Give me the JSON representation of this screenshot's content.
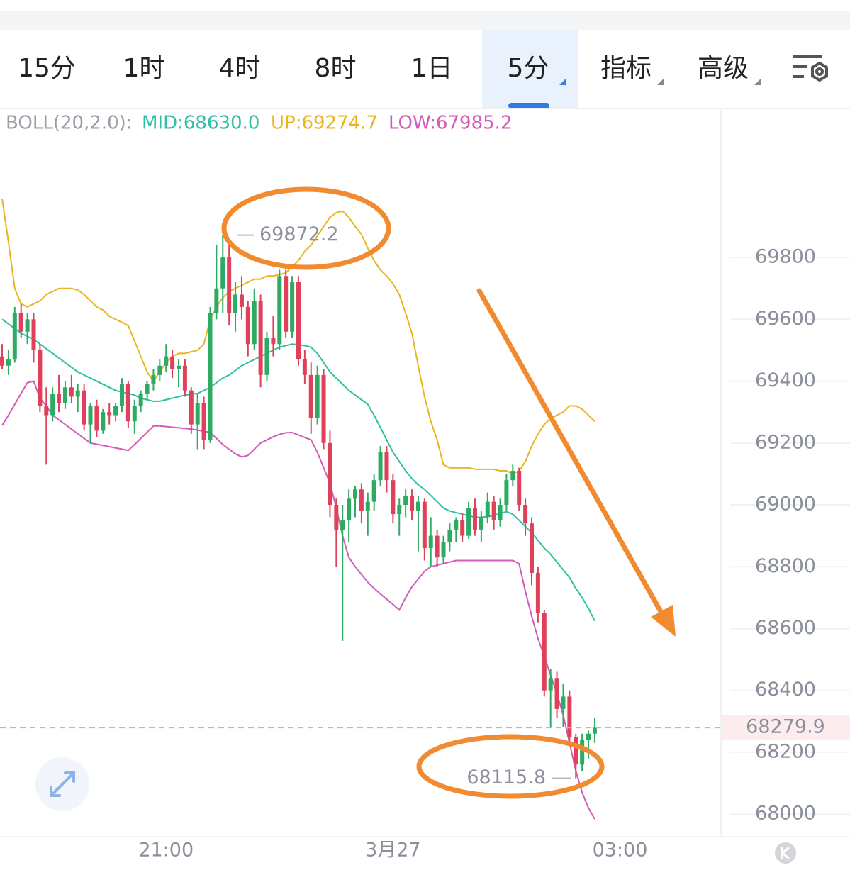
{
  "tabs": [
    "15分",
    "1时",
    "4时",
    "8时",
    "1日",
    "5分",
    "指标",
    "高级"
  ],
  "selected_tab": 5,
  "chart_data": {
    "type": "candlestick",
    "indicator_label": "BOLL(20,2.0):",
    "indicator_label_color": "#9a9ea6",
    "up_color": "#2eab63",
    "down_color": "#e0415a",
    "ylim": [
      67927,
      70174
    ],
    "yticks": [
      68000,
      68200,
      68400,
      68600,
      68800,
      69000,
      69200,
      69400,
      69600,
      69800
    ],
    "xlim": [
      -0.34,
      113.8
    ],
    "xticks": [
      {
        "value": 26,
        "label": "21:00"
      },
      {
        "value": 62,
        "label": "3月27"
      },
      {
        "value": 98,
        "label": "03:00"
      }
    ],
    "grid": true,
    "high_marker": 69872.2,
    "low_marker": 68115.8,
    "last_price": 68279.9,
    "open": [
      69480,
      69450,
      69470,
      69620,
      69560,
      69600,
      69500,
      69320,
      69290,
      69360,
      69330,
      69380,
      69350,
      69370,
      69260,
      69320,
      69240,
      69300,
      69290,
      69320,
      69390,
      69270,
      69320,
      69360,
      69390,
      69420,
      69450,
      69480,
      69440,
      69450,
      69370,
      69260,
      69330,
      69210,
      69620,
      69700,
      69800,
      69620,
      69680,
      69640,
      69520,
      69660,
      69420,
      69540,
      69520,
      69740,
      69560,
      69720,
      69470,
      69420,
      69280,
      69420,
      69200,
      69000,
      68920,
      68950,
      69020,
      69050,
      68980,
      69010,
      69080,
      69170,
      69080,
      68970,
      69000,
      69030,
      68980,
      69010,
      68860,
      68900,
      68830,
      68880,
      68920,
      68950,
      68900,
      68990,
      68920,
      68960,
      69010,
      68950,
      69000,
      69080,
      69110,
      69000,
      68940,
      68780,
      68650,
      68400,
      68440,
      68340,
      68380,
      68250,
      68160,
      68240,
      68260
    ],
    "high": [
      69520,
      69500,
      69640,
      69650,
      69620,
      69620,
      69520,
      69380,
      69380,
      69420,
      69400,
      69420,
      69390,
      69390,
      69330,
      69340,
      69310,
      69330,
      69330,
      69410,
      69400,
      69340,
      69370,
      69400,
      69440,
      69470,
      69520,
      69500,
      69470,
      69470,
      69380,
      69360,
      69350,
      69640,
      69840,
      69872.2,
      69840,
      69720,
      69740,
      69660,
      69700,
      69680,
      69560,
      69610,
      69760,
      69760,
      69740,
      69740,
      69500,
      69460,
      69450,
      69440,
      69240,
      69020,
      69000,
      69050,
      69060,
      69070,
      69040,
      69100,
      69190,
      69190,
      69100,
      69020,
      69050,
      69050,
      69030,
      69020,
      68960,
      68920,
      68900,
      68940,
      68960,
      68970,
      69010,
      69020,
      68980,
      69040,
      69030,
      69020,
      69100,
      69130,
      69120,
      69020,
      68960,
      68800,
      68660,
      68470,
      68460,
      68420,
      68400,
      68260,
      68260,
      68270,
      68310
    ],
    "low": [
      69440,
      69420,
      69460,
      69540,
      69520,
      69460,
      69300,
      69130,
      69270,
      69300,
      69310,
      69330,
      69300,
      69240,
      69200,
      69220,
      69230,
      69260,
      69270,
      69300,
      69250,
      69230,
      69300,
      69340,
      69370,
      69400,
      69430,
      69410,
      69380,
      69350,
      69230,
      69180,
      69180,
      69200,
      69600,
      69620,
      69580,
      69560,
      69600,
      69480,
      69500,
      69380,
      69400,
      69480,
      69500,
      69540,
      69540,
      69450,
      69390,
      69230,
      69260,
      69180,
      68960,
      68800,
      68560,
      68880,
      68960,
      68940,
      68900,
      68980,
      69060,
      69040,
      68940,
      68900,
      68960,
      68950,
      68850,
      68820,
      68800,
      68800,
      68810,
      68850,
      68880,
      68880,
      68890,
      68900,
      68880,
      68940,
      68920,
      68930,
      68980,
      69060,
      68980,
      68900,
      68740,
      68620,
      68380,
      68280,
      68310,
      68280,
      68220,
      68115.8,
      68140,
      68180,
      68230
    ],
    "close": [
      69450,
      69470,
      69620,
      69560,
      69600,
      69500,
      69320,
      69290,
      69360,
      69330,
      69380,
      69350,
      69370,
      69260,
      69320,
      69240,
      69300,
      69290,
      69320,
      69390,
      69270,
      69320,
      69360,
      69390,
      69420,
      69450,
      69480,
      69440,
      69450,
      69370,
      69260,
      69330,
      69210,
      69620,
      69700,
      69800,
      69620,
      69680,
      69640,
      69520,
      69660,
      69420,
      69540,
      69520,
      69740,
      69560,
      69720,
      69470,
      69420,
      69280,
      69420,
      69200,
      69000,
      68920,
      68950,
      69020,
      69050,
      68980,
      69010,
      69080,
      69170,
      69080,
      68970,
      69000,
      69030,
      68980,
      69010,
      68860,
      68900,
      68830,
      68880,
      68920,
      68950,
      68900,
      68990,
      68920,
      68960,
      69010,
      68950,
      69000,
      69080,
      69110,
      69000,
      68940,
      68780,
      68650,
      68400,
      68440,
      68340,
      68380,
      68250,
      68160,
      68240,
      68260,
      68279.9
    ],
    "series": [
      {
        "name": "MID:68630.0",
        "color": "#2ebfa5",
        "values": [
          69600,
          69585,
          69570,
          69555,
          69545,
          69535,
          69520,
          69505,
          69490,
          69475,
          69460,
          69445,
          69430,
          69420,
          69410,
          69400,
          69390,
          69380,
          69370,
          69365,
          69360,
          69355,
          69345,
          69340,
          69335,
          69335,
          69340,
          69345,
          69350,
          69355,
          69358,
          69360,
          69370,
          69380,
          69395,
          69410,
          69420,
          69435,
          69450,
          69460,
          69470,
          69480,
          69490,
          69500,
          69510,
          69515,
          69520,
          69518,
          69515,
          69510,
          69490,
          69460,
          69430,
          69410,
          69390,
          69370,
          69355,
          69340,
          69325,
          69290,
          69250,
          69210,
          69170,
          69140,
          69110,
          69085,
          69065,
          69050,
          69030,
          69010,
          68990,
          68980,
          68975,
          68970,
          68965,
          68960,
          68960,
          68962,
          68966,
          68972,
          68978,
          68970,
          68950,
          68930,
          68910,
          68885,
          68860,
          68840,
          68815,
          68790,
          68765,
          68730,
          68700,
          68665,
          68625
        ]
      },
      {
        "name": "UP:69274.7",
        "color": "#e8b520",
        "values": [
          69990,
          69850,
          69700,
          69650,
          69640,
          69650,
          69660,
          69680,
          69690,
          69700,
          69700,
          69700,
          69695,
          69680,
          69660,
          69640,
          69630,
          69610,
          69600,
          69590,
          69580,
          69530,
          69480,
          69430,
          69400,
          69430,
          69460,
          69480,
          69490,
          69490,
          69495,
          69500,
          69520,
          69600,
          69640,
          69670,
          69690,
          69700,
          69710,
          69720,
          69730,
          69730,
          69740,
          69740,
          69745,
          69750,
          69770,
          69790,
          69820,
          69840,
          69870,
          69900,
          69930,
          69945,
          69950,
          69930,
          69900,
          69875,
          69830,
          69790,
          69760,
          69740,
          69715,
          69680,
          69620,
          69555,
          69450,
          69350,
          69270,
          69210,
          69130,
          69120,
          69120,
          69120,
          69120,
          69115,
          69115,
          69115,
          69115,
          69110,
          69110,
          69100,
          69110,
          69140,
          69190,
          69230,
          69260,
          69280,
          69290,
          69300,
          69320,
          69320,
          69310,
          69290,
          69270
        ]
      },
      {
        "name": "LOW:67985.2",
        "color": "#d35bb7",
        "values": [
          69257,
          69290,
          69325,
          69360,
          69395,
          69400,
          69345,
          69320,
          69290,
          69275,
          69260,
          69245,
          69230,
          69215,
          69200,
          69196,
          69192,
          69188,
          69184,
          69180,
          69176,
          69195,
          69215,
          69235,
          69255,
          69255,
          69253,
          69251,
          69249,
          69247,
          69245,
          69242,
          69238,
          69234,
          69215,
          69195,
          69180,
          69165,
          69155,
          69160,
          69180,
          69200,
          69210,
          69220,
          69228,
          69233,
          69234,
          69226,
          69218,
          69210,
          69170,
          69120,
          69070,
          68990,
          68900,
          68830,
          68800,
          68775,
          68750,
          68730,
          68712,
          68695,
          68678,
          68660,
          68700,
          68735,
          68760,
          68785,
          68800,
          68805,
          68810,
          68815,
          68820,
          68820,
          68820,
          68820,
          68820,
          68820,
          68820,
          68820,
          68820,
          68820,
          68810,
          68720,
          68640,
          68568,
          68510,
          68450,
          68390,
          68320,
          68230,
          68140,
          68070,
          68020,
          67984
        ]
      }
    ]
  }
}
